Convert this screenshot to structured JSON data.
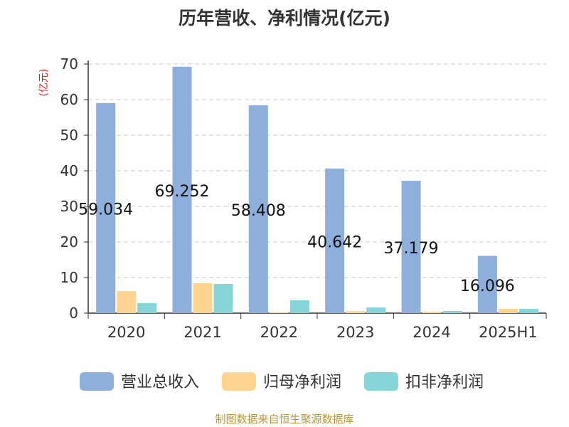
{
  "chart_data": {
    "type": "bar",
    "title": "历年营收、净利情况(亿元)",
    "ylabel": "(亿元)",
    "xlabel": "",
    "categories": [
      "2020",
      "2021",
      "2022",
      "2023",
      "2024",
      "2025H1"
    ],
    "ylim": [
      0,
      70
    ],
    "yticks": [
      0,
      10,
      20,
      30,
      40,
      50,
      60,
      70
    ],
    "grid": true,
    "legend_position": "bottom",
    "series": [
      {
        "name": "营业总收入",
        "color": "#8eaedb",
        "values": [
          59.034,
          69.252,
          58.408,
          40.642,
          37.179,
          16.096
        ],
        "data_labels": [
          "59.034",
          "69.252",
          "58.408",
          "40.642",
          "37.179",
          "16.096"
        ]
      },
      {
        "name": "归母净利润",
        "color": "#ffd591",
        "values": [
          6.2,
          8.4,
          0.3,
          0.6,
          0.4,
          1.2
        ]
      },
      {
        "name": "扣非净利润",
        "color": "#85d5d9",
        "values": [
          2.8,
          8.2,
          3.6,
          1.6,
          0.6,
          1.2
        ]
      }
    ]
  },
  "footer": {
    "source": "制图数据来自恒生聚源数据库"
  }
}
